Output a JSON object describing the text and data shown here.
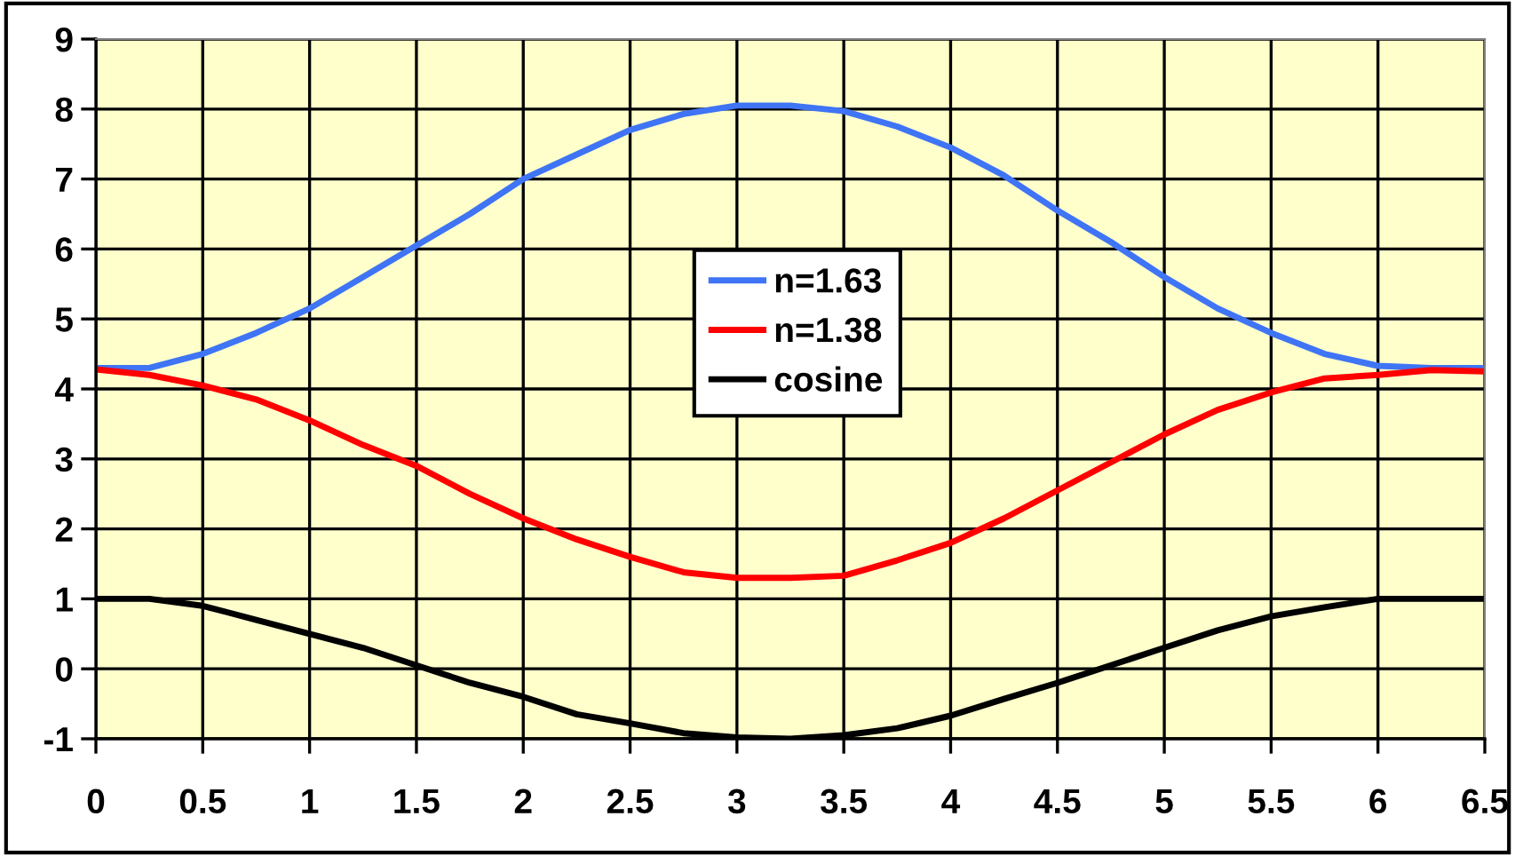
{
  "chart_data": {
    "type": "line",
    "x": [
      0,
      0.25,
      0.5,
      0.75,
      1,
      1.25,
      1.5,
      1.75,
      2,
      2.25,
      2.5,
      2.75,
      3,
      3.25,
      3.5,
      3.75,
      4,
      4.25,
      4.5,
      4.75,
      5,
      5.25,
      5.5,
      5.75,
      6,
      6.25,
      6.5
    ],
    "series": [
      {
        "name": "n=1.63",
        "color": "#3f74f5",
        "values": [
          4.3,
          4.3,
          4.5,
          4.8,
          5.15,
          5.6,
          6.05,
          6.5,
          7.0,
          7.35,
          7.7,
          7.93,
          8.05,
          8.05,
          7.97,
          7.75,
          7.45,
          7.05,
          6.55,
          6.1,
          5.6,
          5.15,
          4.8,
          4.5,
          4.33,
          4.3,
          4.3
        ]
      },
      {
        "name": "n=1.38",
        "color": "#ff0000",
        "values": [
          4.28,
          4.2,
          4.05,
          3.85,
          3.55,
          3.2,
          2.9,
          2.5,
          2.15,
          1.85,
          1.6,
          1.38,
          1.3,
          1.3,
          1.33,
          1.55,
          1.8,
          2.15,
          2.55,
          2.95,
          3.35,
          3.7,
          3.95,
          4.15,
          4.2,
          4.27,
          4.25
        ]
      },
      {
        "name": "cosine",
        "color": "#000000",
        "values": [
          1,
          1,
          0.9,
          0.7,
          0.5,
          0.3,
          0.05,
          -0.2,
          -0.4,
          -0.65,
          -0.78,
          -0.92,
          -0.98,
          -1,
          -0.95,
          -0.85,
          -0.67,
          -0.43,
          -0.2,
          0.05,
          0.3,
          0.55,
          0.75,
          0.88,
          1,
          1,
          1
        ]
      }
    ],
    "xlim": [
      0,
      6.5
    ],
    "xticks": [
      0,
      0.5,
      1,
      1.5,
      2,
      2.5,
      3,
      3.5,
      4,
      4.5,
      5,
      5.5,
      6,
      6.5
    ],
    "ylim": [
      -1,
      9
    ],
    "yticks": [
      -1,
      0,
      1,
      2,
      3,
      4,
      5,
      6,
      7,
      8,
      9
    ],
    "grid": true,
    "legend": "center",
    "marker": "none",
    "line_style": "solid"
  }
}
